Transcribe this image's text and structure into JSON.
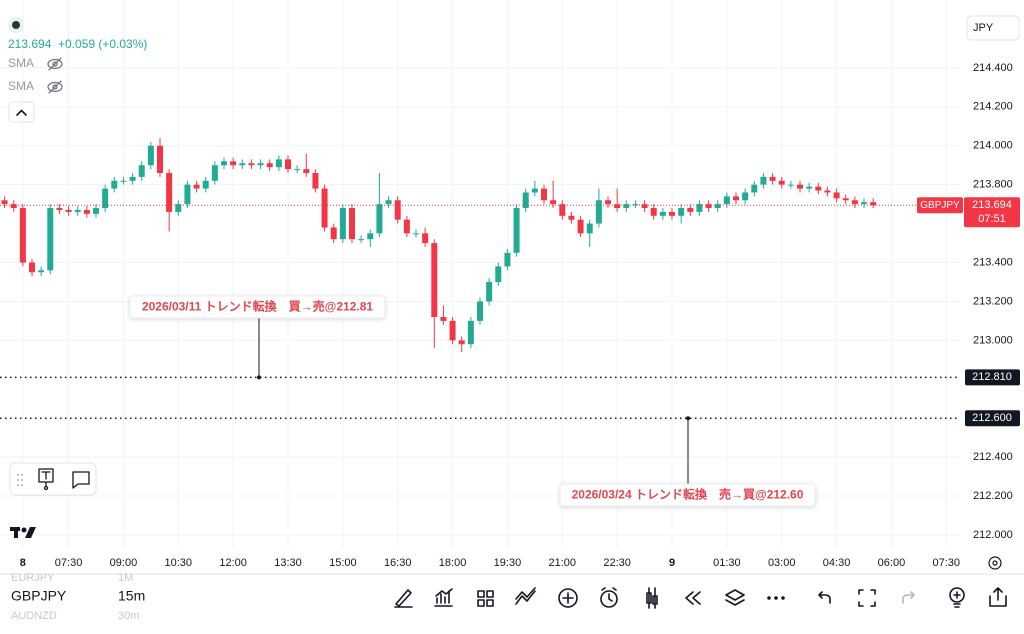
{
  "header": {
    "price": "213.694",
    "change": "+0.059 (+0.03%)",
    "indicators": [
      "SMA",
      "SMA"
    ],
    "currency": "JPY"
  },
  "chart_data": {
    "type": "candlestick",
    "grid": true,
    "up_color": "#22ab94",
    "down_color": "#f23645",
    "x": [
      0,
      1,
      2,
      3,
      4,
      5,
      6,
      7,
      8,
      9,
      10,
      11,
      12,
      13,
      14,
      15,
      16,
      17,
      18,
      19,
      20,
      21,
      22,
      23,
      24,
      25,
      26,
      27,
      28,
      29,
      30,
      31,
      32,
      33,
      34,
      35,
      36,
      37,
      38,
      39,
      40,
      41,
      42,
      43,
      44,
      45,
      46,
      47,
      48,
      49,
      50,
      51,
      52,
      53,
      54,
      55,
      56,
      57,
      58,
      59,
      60,
      61,
      62,
      63,
      64,
      65,
      66,
      67,
      68,
      69,
      70,
      71,
      72,
      73,
      74,
      75,
      76,
      77,
      78,
      79,
      80,
      81,
      82,
      83,
      84,
      85,
      86,
      87,
      88,
      89,
      90,
      91,
      92,
      93,
      94,
      95
    ],
    "open": [
      213.72,
      213.7,
      213.68,
      213.4,
      213.35,
      213.36,
      213.68,
      213.67,
      213.66,
      213.67,
      213.65,
      213.68,
      213.78,
      213.82,
      213.82,
      213.84,
      213.9,
      214.0,
      213.86,
      213.66,
      213.7,
      213.8,
      213.78,
      213.82,
      213.9,
      213.92,
      213.9,
      213.91,
      213.9,
      213.91,
      213.89,
      213.93,
      213.88,
      213.88,
      213.86,
      213.78,
      213.58,
      213.52,
      213.68,
      213.52,
      213.52,
      213.55,
      213.7,
      213.72,
      213.62,
      213.55,
      213.55,
      213.5,
      213.12,
      213.1,
      213.0,
      212.98,
      213.1,
      213.2,
      213.3,
      213.38,
      213.45,
      213.68,
      213.76,
      213.78,
      213.72,
      213.7,
      213.64,
      213.62,
      213.55,
      213.6,
      213.72,
      213.7,
      213.68,
      213.7,
      213.7,
      213.68,
      213.64,
      213.66,
      213.64,
      213.68,
      213.66,
      213.7,
      213.68,
      213.7,
      213.74,
      213.72,
      213.76,
      213.8,
      213.84,
      213.82,
      213.8,
      213.8,
      213.78,
      213.79,
      213.77,
      213.76,
      213.73,
      213.72,
      213.7,
      213.71
    ],
    "high": [
      213.74,
      213.72,
      213.7,
      213.42,
      213.38,
      213.7,
      213.7,
      213.69,
      213.69,
      213.69,
      213.7,
      213.8,
      213.84,
      213.84,
      213.86,
      213.92,
      214.02,
      214.04,
      213.88,
      213.72,
      213.82,
      213.82,
      213.84,
      213.92,
      213.94,
      213.94,
      213.93,
      213.93,
      213.93,
      213.93,
      213.95,
      213.95,
      213.9,
      213.96,
      213.88,
      213.8,
      213.6,
      213.7,
      213.7,
      213.54,
      213.57,
      213.86,
      213.74,
      213.74,
      213.64,
      213.57,
      213.58,
      213.52,
      213.18,
      213.12,
      213.02,
      213.12,
      213.22,
      213.32,
      213.4,
      213.47,
      213.7,
      213.78,
      213.82,
      213.8,
      213.82,
      213.72,
      213.66,
      213.64,
      213.62,
      213.78,
      213.74,
      213.78,
      213.72,
      213.72,
      213.72,
      213.7,
      213.68,
      213.68,
      213.7,
      213.7,
      213.72,
      213.72,
      213.72,
      213.76,
      213.76,
      213.78,
      213.82,
      213.86,
      213.86,
      213.84,
      213.82,
      213.82,
      213.81,
      213.81,
      213.79,
      213.78,
      213.75,
      213.74,
      213.73,
      213.73
    ],
    "low": [
      213.68,
      213.66,
      213.38,
      213.33,
      213.33,
      213.34,
      213.65,
      213.64,
      213.64,
      213.63,
      213.63,
      213.66,
      213.76,
      213.8,
      213.8,
      213.82,
      213.88,
      213.84,
      213.56,
      213.64,
      213.68,
      213.76,
      213.76,
      213.8,
      213.88,
      213.88,
      213.88,
      213.88,
      213.88,
      213.87,
      213.87,
      213.86,
      213.86,
      213.84,
      213.76,
      213.56,
      213.5,
      213.5,
      213.5,
      213.5,
      213.48,
      213.53,
      213.68,
      213.6,
      213.53,
      213.53,
      213.48,
      212.96,
      213.08,
      212.98,
      212.94,
      212.96,
      213.08,
      213.18,
      213.28,
      213.36,
      213.43,
      213.66,
      213.74,
      213.7,
      213.68,
      213.62,
      213.6,
      213.53,
      213.48,
      213.58,
      213.68,
      213.66,
      213.66,
      213.68,
      213.66,
      213.62,
      213.62,
      213.62,
      213.6,
      213.64,
      213.64,
      213.66,
      213.66,
      213.68,
      213.7,
      213.7,
      213.74,
      213.78,
      213.8,
      213.78,
      213.78,
      213.76,
      213.76,
      213.75,
      213.74,
      213.71,
      213.7,
      213.68,
      213.68,
      213.68
    ],
    "close": [
      213.7,
      213.68,
      213.4,
      213.35,
      213.36,
      213.68,
      213.67,
      213.66,
      213.67,
      213.65,
      213.68,
      213.78,
      213.82,
      213.82,
      213.84,
      213.9,
      214.0,
      213.86,
      213.66,
      213.7,
      213.8,
      213.78,
      213.82,
      213.9,
      213.92,
      213.9,
      213.91,
      213.9,
      213.91,
      213.89,
      213.93,
      213.88,
      213.88,
      213.86,
      213.78,
      213.58,
      213.52,
      213.68,
      213.52,
      213.52,
      213.55,
      213.7,
      213.72,
      213.62,
      213.55,
      213.55,
      213.5,
      213.12,
      213.1,
      213.0,
      212.98,
      213.1,
      213.2,
      213.3,
      213.38,
      213.45,
      213.68,
      213.76,
      213.78,
      213.72,
      213.7,
      213.64,
      213.62,
      213.55,
      213.6,
      213.72,
      213.7,
      213.68,
      213.7,
      213.7,
      213.68,
      213.64,
      213.66,
      213.64,
      213.68,
      213.66,
      213.7,
      213.68,
      213.7,
      213.74,
      213.72,
      213.76,
      213.8,
      213.84,
      213.82,
      213.8,
      213.8,
      213.78,
      213.79,
      213.77,
      213.76,
      213.73,
      213.72,
      213.7,
      213.71,
      213.694
    ],
    "xlim": [
      -0.5,
      104.5
    ],
    "xticks": [
      {
        "value": 2,
        "label": "8"
      },
      {
        "value": 7,
        "label": "07:30"
      },
      {
        "value": 13,
        "label": "09:00"
      },
      {
        "value": 19,
        "label": "10:30"
      },
      {
        "value": 25,
        "label": "12:00"
      },
      {
        "value": 31,
        "label": "13:30"
      },
      {
        "value": 37,
        "label": "15:00"
      },
      {
        "value": 43,
        "label": "16:30"
      },
      {
        "value": 49,
        "label": "18:00"
      },
      {
        "value": 55,
        "label": "19:30"
      },
      {
        "value": 61,
        "label": "21:00"
      },
      {
        "value": 67,
        "label": "22:30"
      },
      {
        "value": 73,
        "label": "9"
      },
      {
        "value": 79,
        "label": "01:30"
      },
      {
        "value": 85,
        "label": "03:00"
      },
      {
        "value": 91,
        "label": "04:30"
      },
      {
        "value": 97,
        "label": "06:00"
      },
      {
        "value": 103,
        "label": "07:30"
      }
    ],
    "ylim": [
      211.933,
      214.749
    ],
    "yticks": [
      {
        "value": 214.4,
        "label": "214.400"
      },
      {
        "value": 214.2,
        "label": "214.200"
      },
      {
        "value": 214,
        "label": "214.000"
      },
      {
        "value": 213.8,
        "label": "213.800"
      },
      {
        "value": 213.4,
        "label": "213.400"
      },
      {
        "value": 213.2,
        "label": "213.200"
      },
      {
        "value": 213,
        "label": "213.000"
      },
      {
        "value": 212.4,
        "label": "212.400"
      },
      {
        "value": 212.2,
        "label": "212.200"
      },
      {
        "value": 212,
        "label": "212.000"
      }
    ],
    "price_lines": [
      {
        "value": 212.81,
        "label": "212.810"
      },
      {
        "value": 212.6,
        "label": "212.600"
      }
    ],
    "last_price": {
      "symbol": "GBPJPY",
      "value": 213.694,
      "label": "213.694",
      "countdown": "07:51"
    },
    "annotations": [
      {
        "text": "2026/03/11 トレンド転換　買→売@212.81",
        "value": 212.81
      },
      {
        "text": "2026/03/24 トレンド転換　売→買@212.60",
        "value": 212.6
      }
    ]
  },
  "symbols": [
    {
      "name": "EURJPY",
      "interval": "1M"
    },
    {
      "name": "GBPJPY",
      "interval": "15m"
    },
    {
      "name": "AUDNZD",
      "interval": "30m"
    }
  ]
}
